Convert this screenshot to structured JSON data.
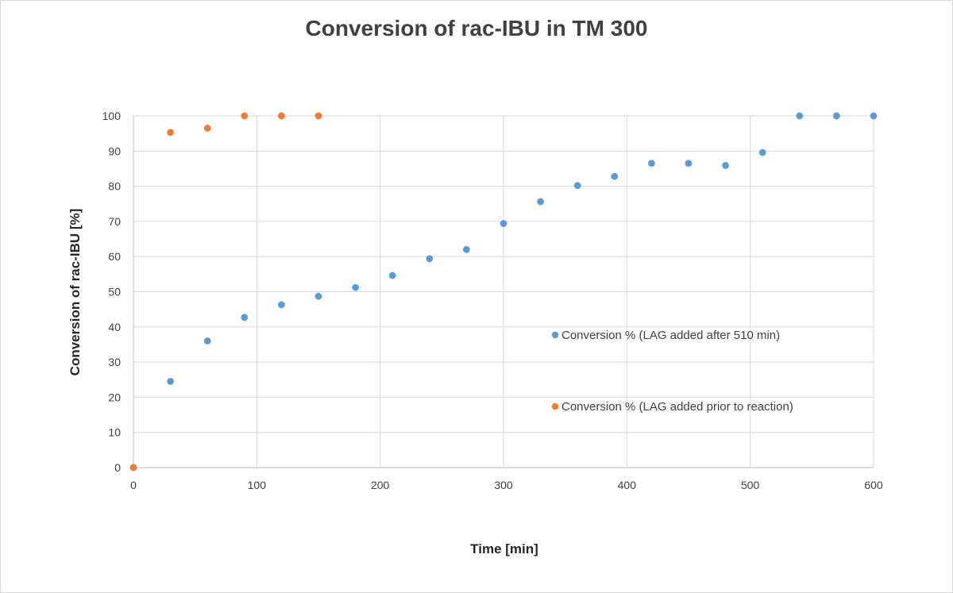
{
  "chart_data": {
    "type": "scatter",
    "title": "Conversion of rac-IBU in TM 300",
    "xlabel": "Time [min]",
    "ylabel": "Conversion of rac-IBU [%]",
    "xlim": [
      0,
      600
    ],
    "ylim": [
      0,
      100
    ],
    "x_ticks": [
      0,
      100,
      200,
      300,
      400,
      500,
      600
    ],
    "y_ticks": [
      0,
      10,
      20,
      30,
      40,
      50,
      60,
      70,
      80,
      90,
      100
    ],
    "grid": true,
    "legend_placement": "inside-center-right",
    "series": [
      {
        "name": "Conversion % (LAG added after 510 min)",
        "color": "#5b9bd5",
        "points": [
          {
            "x": 0,
            "y": 0
          },
          {
            "x": 30,
            "y": 24.5
          },
          {
            "x": 60,
            "y": 36
          },
          {
            "x": 90,
            "y": 42.7
          },
          {
            "x": 120,
            "y": 46.3
          },
          {
            "x": 150,
            "y": 48.7
          },
          {
            "x": 180,
            "y": 51.2
          },
          {
            "x": 210,
            "y": 54.6
          },
          {
            "x": 240,
            "y": 59.4
          },
          {
            "x": 270,
            "y": 62
          },
          {
            "x": 300,
            "y": 69.4
          },
          {
            "x": 330,
            "y": 75.6
          },
          {
            "x": 360,
            "y": 80.2
          },
          {
            "x": 390,
            "y": 82.8
          },
          {
            "x": 420,
            "y": 86.5
          },
          {
            "x": 450,
            "y": 86.5
          },
          {
            "x": 480,
            "y": 85.9
          },
          {
            "x": 510,
            "y": 89.6
          },
          {
            "x": 540,
            "y": 100
          },
          {
            "x": 570,
            "y": 100
          },
          {
            "x": 600,
            "y": 100
          }
        ]
      },
      {
        "name": "Conversion % (LAG added prior to reaction)",
        "color": "#ed7d31",
        "points": [
          {
            "x": 0,
            "y": 0
          },
          {
            "x": 30,
            "y": 95.3
          },
          {
            "x": 60,
            "y": 96.5
          },
          {
            "x": 90,
            "y": 100
          },
          {
            "x": 120,
            "y": 100
          },
          {
            "x": 150,
            "y": 100
          }
        ]
      }
    ]
  }
}
